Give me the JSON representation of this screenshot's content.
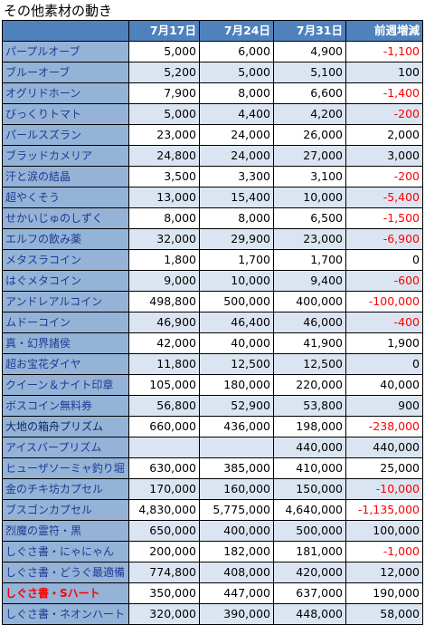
{
  "title": "その他素材の動き",
  "columns": [
    "",
    "7月17日",
    "7月24日",
    "7月31日",
    "前週増減"
  ],
  "rows": [
    {
      "name": "パープルオーブ",
      "v1": "5,000",
      "v2": "6,000",
      "v3": "4,900",
      "diff": "-1,100"
    },
    {
      "name": "ブルーオーブ",
      "v1": "5,200",
      "v2": "5,000",
      "v3": "5,100",
      "diff": "100"
    },
    {
      "name": "オグリドホーン",
      "v1": "7,900",
      "v2": "8,000",
      "v3": "6,600",
      "diff": "-1,400"
    },
    {
      "name": "びっくりトマト",
      "v1": "5,000",
      "v2": "4,400",
      "v3": "4,200",
      "diff": "-200"
    },
    {
      "name": "パールスズラン",
      "v1": "23,000",
      "v2": "24,000",
      "v3": "26,000",
      "diff": "2,000"
    },
    {
      "name": "ブラッドカメリア",
      "v1": "24,800",
      "v2": "24,000",
      "v3": "27,000",
      "diff": "3,000"
    },
    {
      "name": "汗と涙の結晶",
      "v1": "3,500",
      "v2": "3,300",
      "v3": "3,100",
      "diff": "-200"
    },
    {
      "name": "超やくそう",
      "v1": "13,000",
      "v2": "15,400",
      "v3": "10,000",
      "diff": "-5,400"
    },
    {
      "name": "せかいじゅのしずく",
      "v1": "8,000",
      "v2": "8,000",
      "v3": "6,500",
      "diff": "-1,500"
    },
    {
      "name": "エルフの飲み薬",
      "v1": "32,000",
      "v2": "29,900",
      "v3": "23,000",
      "diff": "-6,900"
    },
    {
      "name": "メタスラコイン",
      "v1": "1,800",
      "v2": "1,700",
      "v3": "1,700",
      "diff": "0"
    },
    {
      "name": "はぐメタコイン",
      "v1": "9,000",
      "v2": "10,000",
      "v3": "9,400",
      "diff": "-600"
    },
    {
      "name": "アンドレアルコイン",
      "v1": "498,800",
      "v2": "500,000",
      "v3": "400,000",
      "diff": "-100,000"
    },
    {
      "name": "ムドーコイン",
      "v1": "46,900",
      "v2": "46,400",
      "v3": "46,000",
      "diff": "-400"
    },
    {
      "name": "真・幻界諸侯",
      "v1": "42,000",
      "v2": "40,000",
      "v3": "41,900",
      "diff": "1,900"
    },
    {
      "name": "超お宝花ダイヤ",
      "v1": "11,800",
      "v2": "12,500",
      "v3": "12,500",
      "diff": "0"
    },
    {
      "name": "クイーン＆ナイト印章",
      "v1": "105,000",
      "v2": "180,000",
      "v3": "220,000",
      "diff": "40,000"
    },
    {
      "name": "ボスコイン無料券",
      "v1": "56,800",
      "v2": "52,900",
      "v3": "53,800",
      "diff": "900"
    },
    {
      "name": "大地の箱舟プリズム",
      "v1": "660,000",
      "v2": "436,000",
      "v3": "198,000",
      "diff": "-238,000",
      "dark": true
    },
    {
      "name": "アイスバープリズム",
      "v1": "",
      "v2": "",
      "v3": "440,000",
      "diff": "440,000"
    },
    {
      "name": "ヒューザソーミャ釣り堀",
      "v1": "630,000",
      "v2": "385,000",
      "v3": "410,000",
      "diff": "25,000"
    },
    {
      "name": "金のチキ坊カプセル",
      "v1": "170,000",
      "v2": "160,000",
      "v3": "150,000",
      "diff": "-10,000"
    },
    {
      "name": "ブスゴンカプセル",
      "v1": "4,830,000",
      "v2": "5,775,000",
      "v3": "4,640,000",
      "diff": "-1,135,000"
    },
    {
      "name": "烈魔の霊符・黒",
      "v1": "650,000",
      "v2": "400,000",
      "v3": "500,000",
      "diff": "100,000"
    },
    {
      "name": "しぐさ書・にゃにゃん",
      "v1": "200,000",
      "v2": "182,000",
      "v3": "181,000",
      "diff": "-1,000"
    },
    {
      "name": "しぐさ書・どうぐ最適備",
      "v1": "774,800",
      "v2": "408,000",
      "v3": "420,000",
      "diff": "12,000"
    },
    {
      "name": "しぐさ書・Sハート",
      "v1": "350,000",
      "v2": "447,000",
      "v3": "637,000",
      "diff": "190,000",
      "red": true
    },
    {
      "name": "しぐさ書・ネオンハート",
      "v1": "320,000",
      "v2": "390,000",
      "v3": "448,000",
      "diff": "58,000"
    }
  ],
  "colors": {
    "header_bg": "#4f81bd",
    "name_bg": "#95b3d7",
    "name_text": "#1f3a93",
    "row_alt_bg": "#dbe5f1",
    "negative": "#ff0000"
  }
}
